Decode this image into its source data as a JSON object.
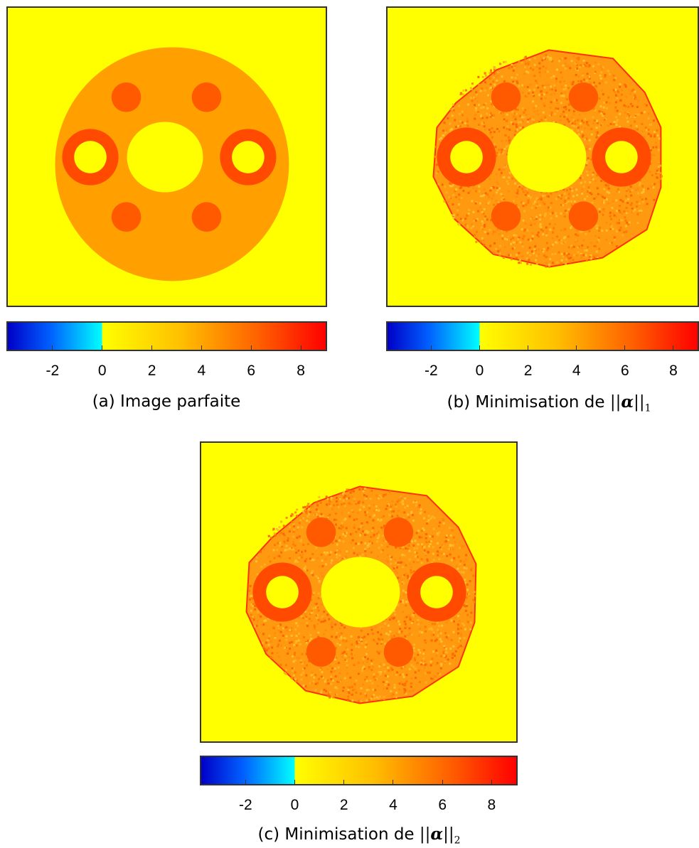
{
  "colorbar": {
    "ticks": [
      "-2",
      "0",
      "2",
      "4",
      "6",
      "8"
    ],
    "tick_values": [
      -2,
      0,
      2,
      4,
      6,
      8
    ],
    "range": [
      -3.8,
      9
    ],
    "colormap": [
      "#0000ff",
      "#00ffff",
      "#ffff00",
      "#ff9900",
      "#ff0000"
    ]
  },
  "panels": [
    {
      "caption": "(a) Image parfaite",
      "caption_prefix": "(a) Image parfaite",
      "norm_sub": ""
    },
    {
      "caption_prefix": "(b) Minimisation de ",
      "norm_open": "||",
      "norm_symbol": "α",
      "norm_close": "||",
      "norm_sub": "1"
    },
    {
      "caption_prefix": "(c) Minimisation de ",
      "norm_open": "||",
      "norm_symbol": "α",
      "norm_close": "||",
      "norm_sub": "2"
    }
  ],
  "colors": {
    "background_yellow": "#ffff00",
    "disk_orange": "#ffa000",
    "hole_red": "#ff4500"
  }
}
